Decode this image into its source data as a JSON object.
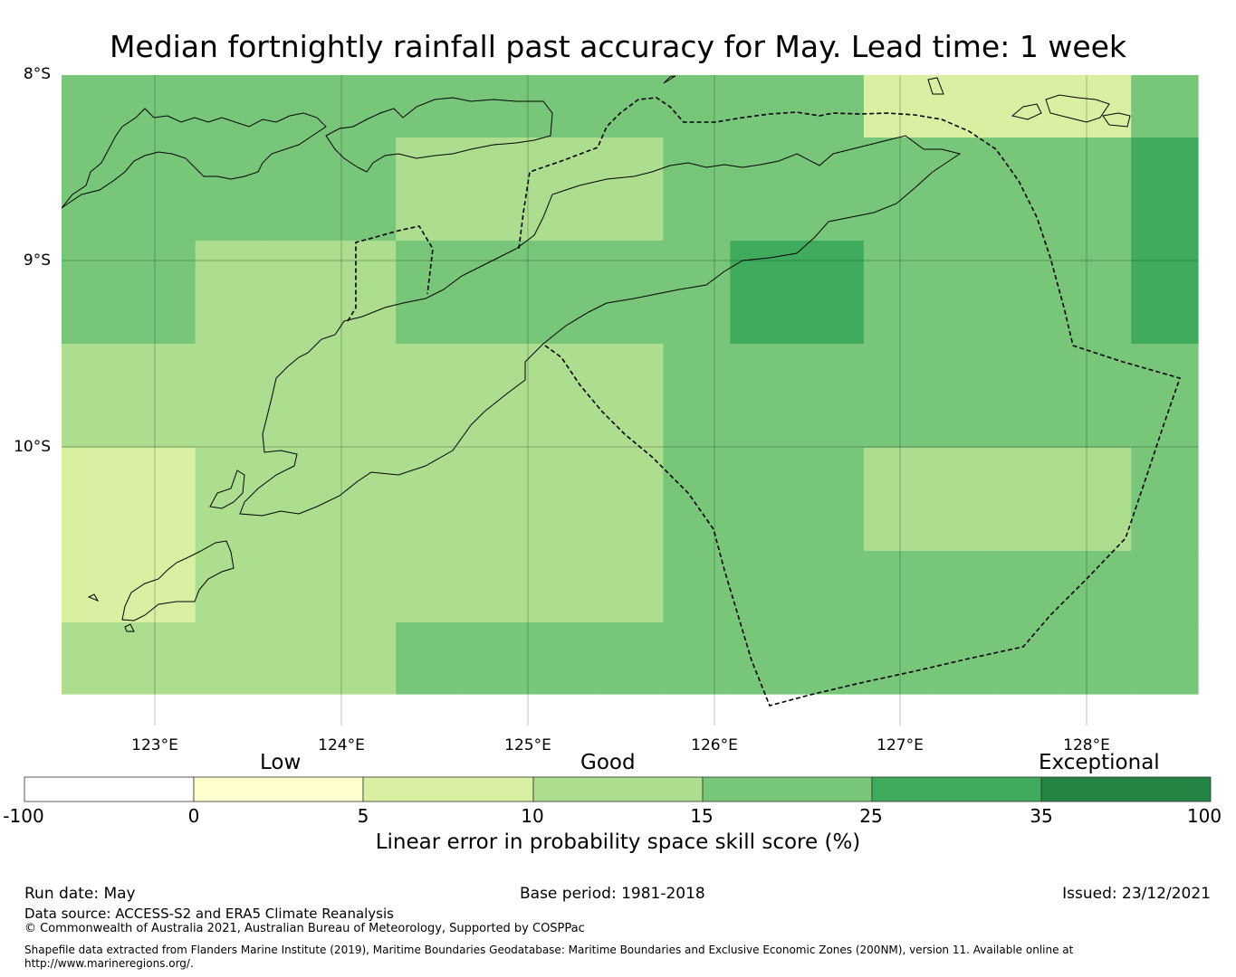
{
  "title": "Median fortnightly rainfall past accuracy for May. Lead time: 1 week",
  "map": {
    "lat_labels": [
      "8°S",
      "9°S",
      "10°S"
    ],
    "lon_labels": [
      "123°E",
      "124°E",
      "125°E",
      "126°E",
      "127°E",
      "128°E"
    ],
    "colors": {
      "0-5": "#ffffcc",
      "5-10": "#d9f0a3",
      "10-15": "#addd8e",
      "15-25": "#78c679",
      "25-35": "#41ab5d",
      "35-100": "#238443"
    },
    "grid_cells": [
      [
        "15-25",
        "15-25",
        "15-25",
        "15-25",
        "15-25",
        "15-25",
        "15-25",
        "15-25",
        "15-25",
        "15-25",
        "15-25",
        "15-25",
        "5-10",
        "5-10",
        "5-10",
        "5-10",
        "15-25"
      ],
      [
        "15-25",
        "15-25",
        "15-25",
        "15-25",
        "15-25",
        "10-15",
        "10-15",
        "10-15",
        "10-15",
        "15-25",
        "15-25",
        "15-25",
        "15-25",
        "15-25",
        "15-25",
        "15-25",
        "25-35"
      ],
      [
        "15-25",
        "15-25",
        "10-15",
        "10-15",
        "10-15",
        "15-25",
        "15-25",
        "15-25",
        "15-25",
        "15-25",
        "25-35",
        "25-35",
        "15-25",
        "15-25",
        "15-25",
        "15-25",
        "25-35"
      ],
      [
        "10-15",
        "10-15",
        "10-15",
        "10-15",
        "10-15",
        "10-15",
        "10-15",
        "10-15",
        "10-15",
        "15-25",
        "15-25",
        "15-25",
        "15-25",
        "15-25",
        "15-25",
        "15-25",
        "15-25"
      ],
      [
        "5-10",
        "5-10",
        "10-15",
        "10-15",
        "10-15",
        "10-15",
        "10-15",
        "10-15",
        "10-15",
        "15-25",
        "15-25",
        "15-25",
        "10-15",
        "10-15",
        "10-15",
        "10-15",
        "15-25"
      ],
      [
        "5-10",
        "5-10",
        "10-15",
        "10-15",
        "10-15",
        "10-15",
        "10-15",
        "10-15",
        "10-15",
        "15-25",
        "15-25",
        "15-25",
        "15-25",
        "15-25",
        "15-25",
        "15-25",
        "15-25"
      ],
      [
        "10-15",
        "10-15",
        "10-15",
        "10-15",
        "10-15",
        "15-25",
        "15-25",
        "15-25",
        "15-25",
        "15-25",
        "15-25",
        "15-25",
        "15-25",
        "15-25",
        "15-25",
        "15-25",
        "15-25"
      ]
    ]
  },
  "colorbar": {
    "categories": [
      "Low",
      "Good",
      "Exceptional"
    ],
    "ticks": [
      "-100",
      "0",
      "5",
      "10",
      "15",
      "25",
      "35",
      "100"
    ],
    "colors": [
      "#ffffff",
      "#ffffcc",
      "#d9f0a3",
      "#addd8e",
      "#78c679",
      "#41ab5d",
      "#238443"
    ],
    "label": "Linear error in probability space skill score (%)"
  },
  "footer": {
    "run_date": "Run date: May",
    "base_period": "Base period: 1981-2018",
    "issued": "Issued: 23/12/2021",
    "data_source": "Data source: ACCESS-S2 and ERA5 Climate Reanalysis",
    "copyright": "© Commonwealth of Australia 2021, Australian Bureau of Meteorology, Supported by COSPPac",
    "shapefile": "Shapefile data extracted from Flanders Marine Institute (2019), Maritime Boundaries Geodatabase: Maritime Boundaries and Exclusive Economic Zones (200NM), version 11. Available online at",
    "url": "http://www.marineregions.org/."
  }
}
